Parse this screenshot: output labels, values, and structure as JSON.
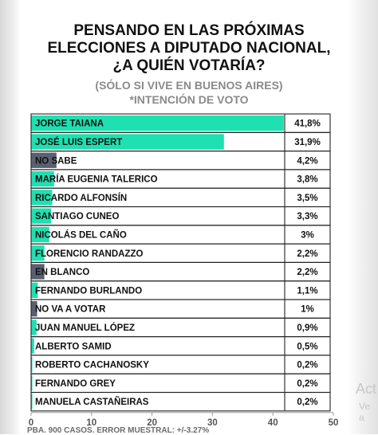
{
  "header": {
    "title_lines": [
      "PENSANDO EN LAS PRÓXIMAS",
      "ELECCIONES A DIPUTADO NACIONAL,",
      "¿A QUIÉN VOTARÍA?"
    ],
    "subtitle_lines": [
      "(SÓLO SI VIVE EN BUENOS AIRES)",
      "*INTENCIÓN DE VOTO"
    ]
  },
  "chart_data": {
    "type": "bar",
    "orientation": "horizontal",
    "title": "PENSANDO EN LAS PRÓXIMAS ELECCIONES A DIPUTADO NACIONAL, ¿A QUIÉN VOTARÍA?",
    "subtitle": "(SÓLO SI VIVE EN BUENOS AIRES) *INTENCIÓN DE VOTO",
    "categories": [
      "JORGE TAIANA",
      "JOSÉ LUIS ESPERT",
      "NO SABE",
      "MARÍA EUGENIA TALERICO",
      "RICARDO ALFONSÍN",
      "SANTIAGO CUNEO",
      "NICOLÁS DEL CAÑO",
      "FLORENCIO RANDAZZO",
      "EN BLANCO",
      "FERNANDO BURLANDO",
      "NO VA A VOTAR",
      "JUAN MANUEL LÓPEZ",
      "ALBERTO SAMID",
      "ROBERTO CACHANOSKY",
      "FERNANDO GREY",
      "MANUELA CASTAÑEIRAS"
    ],
    "values": [
      41.8,
      31.9,
      4.2,
      3.8,
      3.5,
      3.3,
      3,
      2.2,
      2.2,
      1.1,
      1,
      0.9,
      0.5,
      0.2,
      0.2,
      0.2
    ],
    "value_labels": [
      "41,8%",
      "31,9%",
      "4,2%",
      "3,8%",
      "3,5%",
      "3,3%",
      "3%",
      "2,2%",
      "2,2%",
      "1,1%",
      "1%",
      "0,9%",
      "0,5%",
      "0,2%",
      "0,2%",
      "0,2%"
    ],
    "bar_colors": [
      "#1fe0b0",
      "#1fe0b0",
      "#5a6070",
      "#1fe0b0",
      "#1fe0b0",
      "#1fe0b0",
      "#1fe0b0",
      "#1fe0b0",
      "#5a6070",
      "#1fe0b0",
      "#5a6070",
      "#1fe0b0",
      "#1fe0b0",
      "#1fe0b0",
      "#1fe0b0",
      "#1fe0b0"
    ],
    "xlim": [
      0,
      50
    ],
    "xticks": [
      0,
      10,
      20,
      30,
      40,
      50
    ],
    "xlabel": "",
    "ylabel": "",
    "grid": false,
    "legend": "none"
  },
  "colors": {
    "accent": "#1fe0b0",
    "neutral_bar": "#5a6070",
    "title": "#111111",
    "subtitle": "#8a8a8a"
  },
  "footnote": "PBA. 900 CASOS. ERROR MUESTRAL: +/-3.27%",
  "watermark": {
    "line1": "Act",
    "line2": "Ve a"
  }
}
